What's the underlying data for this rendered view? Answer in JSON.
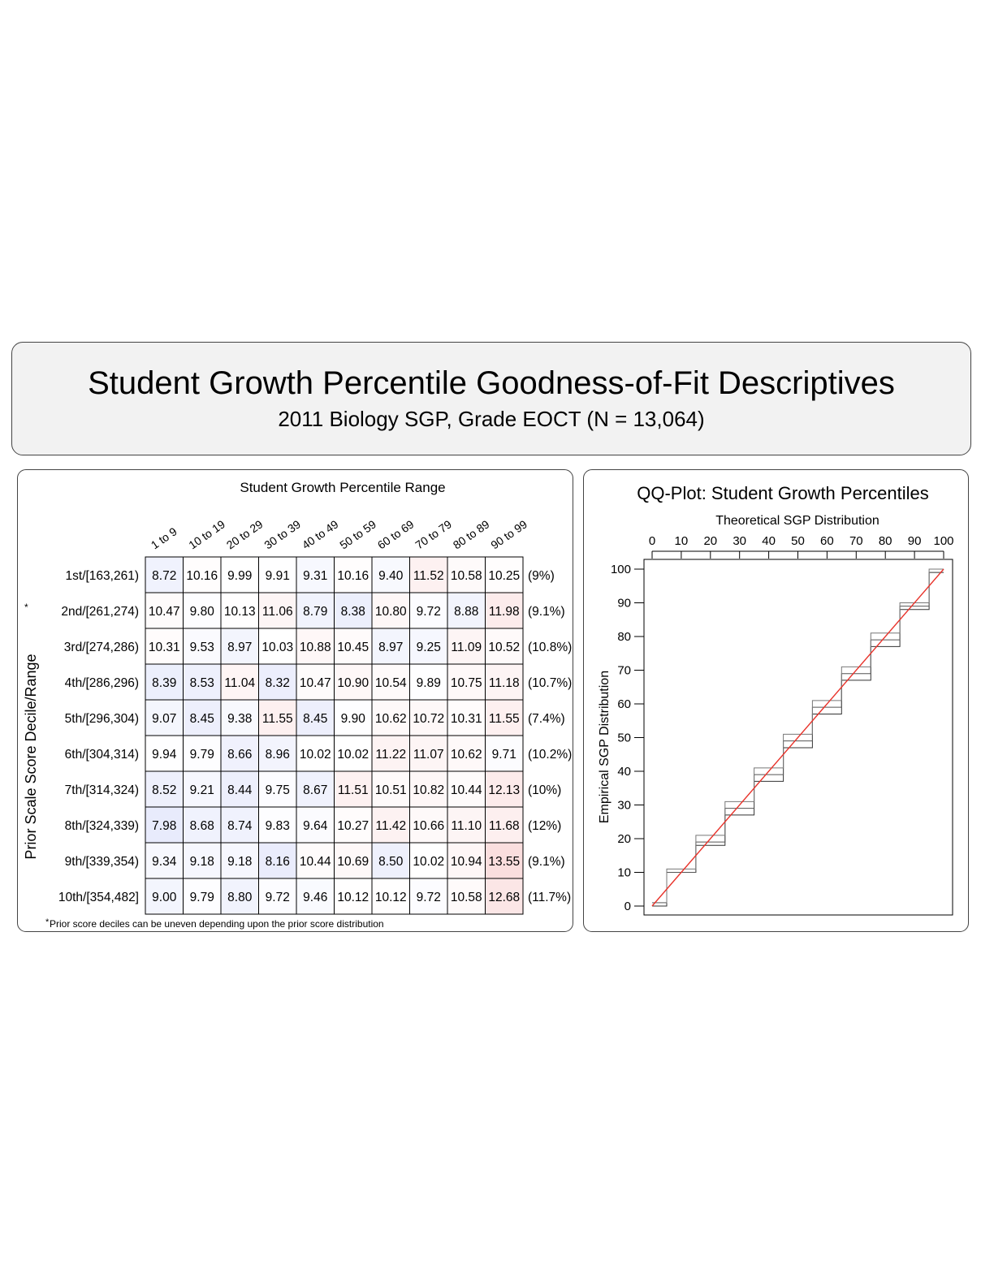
{
  "header": {
    "title": "Student Growth Percentile Goodness-of-Fit Descriptives",
    "subtitle": "2011 Biology SGP, Grade EOCT (N = 13,064)"
  },
  "chart_data": [
    {
      "type": "heatmap",
      "title": "Student Growth Percentile Range",
      "ylabel": "Prior Scale Score Decile/Range",
      "ylabel_marker": "*",
      "footnote": "Prior score deciles can be uneven depending upon the prior score distribution",
      "footnote_marker": "*",
      "columns": [
        "1 to 9",
        "10 to 19",
        "20 to 29",
        "30 to 39",
        "40 to 49",
        "50 to 59",
        "60 to 69",
        "70 to 79",
        "80 to 89",
        "90 to 99"
      ],
      "rows": [
        "1st/[163,261)",
        "2nd/[261,274)",
        "3rd/[274,286)",
        "4th/[286,296)",
        "5th/[296,304)",
        "6th/[304,314)",
        "7th/[314,324)",
        "8th/[324,339)",
        "9th/[339,354)",
        "10th/[354,482]"
      ],
      "row_percents": [
        "(9%)",
        "(9.1%)",
        "(10.8%)",
        "(10.7%)",
        "(7.4%)",
        "(10.2%)",
        "(10%)",
        "(12%)",
        "(9.1%)",
        "(11.7%)"
      ],
      "values": [
        [
          "8.72",
          "10.16",
          "9.99",
          "9.91",
          "9.31",
          "10.16",
          "9.40",
          "11.52",
          "10.58",
          "10.25"
        ],
        [
          "10.47",
          "9.80",
          "10.13",
          "11.06",
          "8.79",
          "8.38",
          "10.80",
          "9.72",
          "8.88",
          "11.98"
        ],
        [
          "10.31",
          "9.53",
          "8.97",
          "10.03",
          "10.88",
          "10.45",
          "8.97",
          "9.25",
          "11.09",
          "10.52"
        ],
        [
          "8.39",
          "8.53",
          "11.04",
          "8.32",
          "10.47",
          "10.90",
          "10.54",
          "9.89",
          "10.75",
          "11.18"
        ],
        [
          "9.07",
          "8.45",
          "9.38",
          "11.55",
          "8.45",
          "9.90",
          "10.62",
          "10.72",
          "10.31",
          "11.55"
        ],
        [
          "9.94",
          "9.79",
          "8.66",
          "8.96",
          "10.02",
          "10.02",
          "11.22",
          "11.07",
          "10.62",
          "9.71"
        ],
        [
          "8.52",
          "9.21",
          "8.44",
          "9.75",
          "8.67",
          "11.51",
          "10.51",
          "10.82",
          "10.44",
          "12.13"
        ],
        [
          "7.98",
          "8.68",
          "8.74",
          "9.83",
          "9.64",
          "10.27",
          "11.42",
          "10.66",
          "11.10",
          "11.68"
        ],
        [
          "9.34",
          "9.18",
          "9.18",
          "8.16",
          "10.44",
          "10.69",
          "8.50",
          "10.02",
          "10.94",
          "13.55"
        ],
        [
          "9.00",
          "9.79",
          "8.80",
          "9.72",
          "9.46",
          "10.12",
          "10.12",
          "9.72",
          "10.58",
          "12.68"
        ]
      ],
      "colors": {
        "low": "#5a6ee6",
        "high": "#e65a5a",
        "neutral": "#ffffff"
      }
    },
    {
      "type": "line",
      "title": "QQ-Plot: Student Growth Percentiles",
      "xlabel": "Theoretical SGP Distribution",
      "ylabel": "Empirical SGP Distribution",
      "xlim": [
        0,
        100
      ],
      "ylim": [
        0,
        100
      ],
      "xticks": [
        0,
        10,
        20,
        30,
        40,
        50,
        60,
        70,
        80,
        90,
        100
      ],
      "yticks": [
        0,
        10,
        20,
        30,
        40,
        50,
        60,
        70,
        80,
        90,
        100
      ],
      "x_axis_position": "top",
      "series": [
        {
          "role": "reference",
          "color": "#e8322a",
          "x": [
            0,
            100
          ],
          "y": [
            0,
            100
          ]
        },
        {
          "role": "empirical",
          "color": "#333333",
          "x": [
            0,
            10,
            20,
            30,
            40,
            50,
            60,
            70,
            80,
            90,
            100
          ],
          "y": [
            0,
            10,
            18,
            27,
            37,
            47,
            57,
            67,
            77,
            88,
            99
          ]
        },
        {
          "role": "empirical",
          "color": "#555555",
          "x": [
            0,
            10,
            20,
            30,
            40,
            50,
            60,
            70,
            80,
            90,
            100
          ],
          "y": [
            1,
            10,
            19,
            29,
            39,
            49,
            59,
            69,
            79,
            89,
            99
          ]
        },
        {
          "role": "empirical",
          "color": "#777777",
          "x": [
            0,
            10,
            20,
            30,
            40,
            50,
            60,
            70,
            80,
            90,
            100
          ],
          "y": [
            1,
            11,
            21,
            31,
            41,
            51,
            61,
            71,
            81,
            90,
            100
          ]
        }
      ]
    }
  ]
}
